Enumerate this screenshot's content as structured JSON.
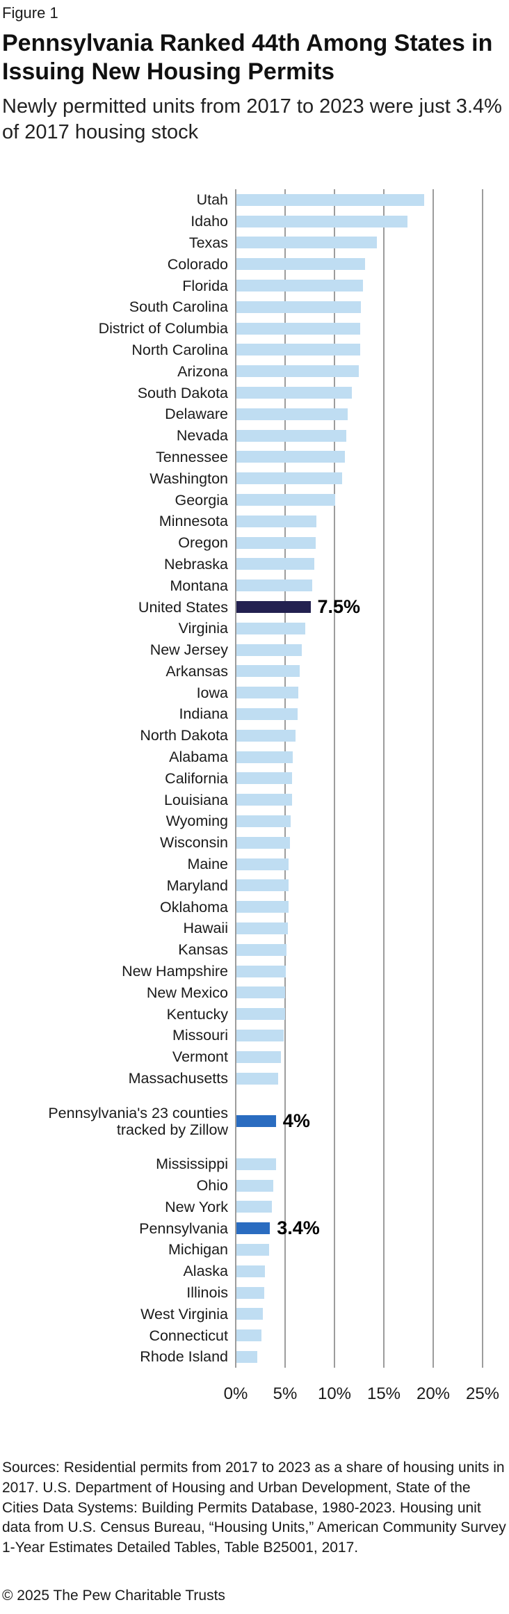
{
  "header": {
    "figure_label": "Figure 1",
    "title": "Pennsylvania Ranked 44th Among States in Issuing New Housing Permits",
    "subtitle": "Newly permitted units from 2017 to 2023 were just 3.4% of 2017 housing stock"
  },
  "colors": {
    "bar_light": "#bfddf2",
    "bar_navy": "#232150",
    "bar_blue": "#2a6cc0",
    "gridline": "#9c9c9c"
  },
  "chart_data": {
    "type": "bar",
    "orientation": "horizontal",
    "unit": "percent",
    "title": "Pennsylvania Ranked 44th Among States in Issuing New Housing Permits",
    "xlabel": "",
    "ylabel": "",
    "xlim": [
      0,
      25
    ],
    "x_ticks": [
      "0%",
      "5%",
      "10%",
      "15%",
      "20%",
      "25%"
    ],
    "grid": true,
    "rows": [
      {
        "label": "Utah",
        "value": 19.0,
        "color": "light"
      },
      {
        "label": "Idaho",
        "value": 17.3,
        "color": "light"
      },
      {
        "label": "Texas",
        "value": 14.2,
        "color": "light"
      },
      {
        "label": "Colorado",
        "value": 13.0,
        "color": "light"
      },
      {
        "label": "Florida",
        "value": 12.8,
        "color": "light"
      },
      {
        "label": "South Carolina",
        "value": 12.6,
        "color": "light"
      },
      {
        "label": "District of Columbia",
        "value": 12.5,
        "color": "light"
      },
      {
        "label": "North Carolina",
        "value": 12.5,
        "color": "light"
      },
      {
        "label": "Arizona",
        "value": 12.4,
        "color": "light"
      },
      {
        "label": "South Dakota",
        "value": 11.7,
        "color": "light"
      },
      {
        "label": "Delaware",
        "value": 11.3,
        "color": "light"
      },
      {
        "label": "Nevada",
        "value": 11.1,
        "color": "light"
      },
      {
        "label": "Tennessee",
        "value": 11.0,
        "color": "light"
      },
      {
        "label": "Washington",
        "value": 10.7,
        "color": "light"
      },
      {
        "label": "Georgia",
        "value": 10.0,
        "color": "light"
      },
      {
        "label": "Minnesota",
        "value": 8.1,
        "color": "light"
      },
      {
        "label": "Oregon",
        "value": 8.0,
        "color": "light"
      },
      {
        "label": "Nebraska",
        "value": 7.9,
        "color": "light"
      },
      {
        "label": "Montana",
        "value": 7.7,
        "color": "light"
      },
      {
        "label": "United States",
        "value": 7.5,
        "color": "navy",
        "annotation": "7.5%"
      },
      {
        "label": "Virginia",
        "value": 7.0,
        "color": "light"
      },
      {
        "label": "New Jersey",
        "value": 6.6,
        "color": "light"
      },
      {
        "label": "Arkansas",
        "value": 6.4,
        "color": "light"
      },
      {
        "label": "Iowa",
        "value": 6.3,
        "color": "light"
      },
      {
        "label": "Indiana",
        "value": 6.2,
        "color": "light"
      },
      {
        "label": "North Dakota",
        "value": 6.0,
        "color": "light"
      },
      {
        "label": "Alabama",
        "value": 5.7,
        "color": "light"
      },
      {
        "label": "California",
        "value": 5.6,
        "color": "light"
      },
      {
        "label": "Louisiana",
        "value": 5.6,
        "color": "light"
      },
      {
        "label": "Wyoming",
        "value": 5.5,
        "color": "light"
      },
      {
        "label": "Wisconsin",
        "value": 5.4,
        "color": "light"
      },
      {
        "label": "Maine",
        "value": 5.3,
        "color": "light"
      },
      {
        "label": "Maryland",
        "value": 5.3,
        "color": "light"
      },
      {
        "label": "Oklahoma",
        "value": 5.3,
        "color": "light"
      },
      {
        "label": "Hawaii",
        "value": 5.2,
        "color": "light"
      },
      {
        "label": "Kansas",
        "value": 5.1,
        "color": "light"
      },
      {
        "label": "New Hampshire",
        "value": 5.0,
        "color": "light"
      },
      {
        "label": "New Mexico",
        "value": 4.9,
        "color": "light"
      },
      {
        "label": "Kentucky",
        "value": 4.9,
        "color": "light"
      },
      {
        "label": "Missouri",
        "value": 4.8,
        "color": "light"
      },
      {
        "label": "Vermont",
        "value": 4.5,
        "color": "light"
      },
      {
        "label": "Massachusetts",
        "value": 4.2,
        "color": "light"
      },
      {
        "spacer": true
      },
      {
        "label": "Pennsylvania's 23 counties tracked by Zillow",
        "label_lines": [
          "Pennsylvania's 23 counties",
          "tracked by Zillow"
        ],
        "value": 4.0,
        "color": "blue",
        "annotation": "4%"
      },
      {
        "spacer": true
      },
      {
        "label": "Mississippi",
        "value": 4.0,
        "color": "light"
      },
      {
        "label": "Ohio",
        "value": 3.7,
        "color": "light"
      },
      {
        "label": "New York",
        "value": 3.6,
        "color": "light"
      },
      {
        "label": "Pennsylvania",
        "value": 3.4,
        "color": "blue",
        "annotation": "3.4%"
      },
      {
        "label": "Michigan",
        "value": 3.3,
        "color": "light"
      },
      {
        "label": "Alaska",
        "value": 2.9,
        "color": "light"
      },
      {
        "label": "Illinois",
        "value": 2.8,
        "color": "light"
      },
      {
        "label": "West Virginia",
        "value": 2.7,
        "color": "light"
      },
      {
        "label": "Connecticut",
        "value": 2.5,
        "color": "light"
      },
      {
        "label": "Rhode Island",
        "value": 2.1,
        "color": "light"
      }
    ]
  },
  "footer": {
    "sources": "Sources: Residential permits from 2017 to 2023 as a share of housing units in 2017. U.S. Department of Housing and Urban Development, State of the Cities Data Systems: Building Permits Database, 1980-2023. Housing unit data from U.S. Census Bureau, “Housing Units,” American Community Survey 1-Year Estimates Detailed Tables, Table B25001, 2017.",
    "copyright": "© 2025 The Pew Charitable Trusts"
  }
}
